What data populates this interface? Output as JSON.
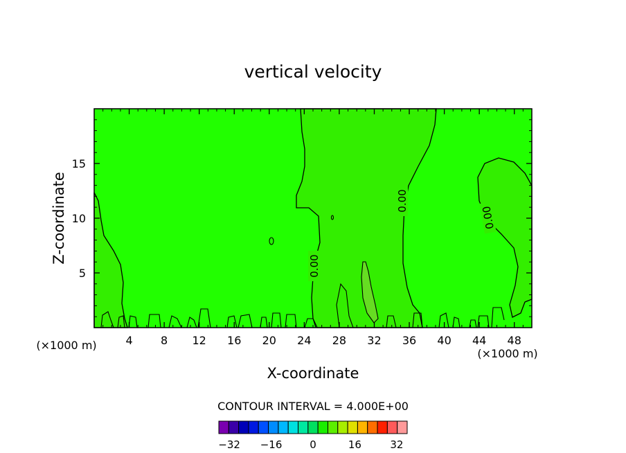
{
  "chart_data": {
    "type": "contour",
    "title": "vertical velocity",
    "xlabel": "X-coordinate",
    "ylabel": "Z-coordinate",
    "x_unit_left": "(×1000 m)",
    "x_unit_right": "(×1000 m)",
    "xlim": [
      0,
      50
    ],
    "ylim": [
      0,
      20
    ],
    "x_ticks": [
      "4",
      "8",
      "12",
      "16",
      "20",
      "24",
      "28",
      "32",
      "36",
      "40",
      "44",
      "48"
    ],
    "x_tick_values": [
      4,
      8,
      12,
      16,
      20,
      24,
      28,
      32,
      36,
      40,
      44,
      48
    ],
    "y_ticks": [
      "5",
      "10",
      "15"
    ],
    "y_tick_values": [
      5,
      10,
      15
    ],
    "contour_labels": [
      "0.00",
      "0.00",
      "0.00"
    ],
    "contour_interval_text": "CONTOUR INTERVAL = 4.000E+00",
    "colorbar": {
      "tick_labels": [
        "−32",
        "−16",
        "0",
        "16",
        "32"
      ],
      "tick_values": [
        -32,
        -16,
        0,
        16,
        32
      ],
      "levels": [
        -36,
        -32,
        -28,
        -24,
        -20,
        -16,
        -12,
        -8,
        -4,
        0,
        4,
        8,
        12,
        16,
        20,
        24,
        28,
        32,
        36
      ],
      "colors": [
        "#7a00b0",
        "#3a00a8",
        "#0000b8",
        "#0018e0",
        "#0050ff",
        "#008cff",
        "#00b8ff",
        "#00e0e0",
        "#00e8a0",
        "#00e060",
        "#1aee00",
        "#5cee00",
        "#a8ee00",
        "#e0e000",
        "#ffb400",
        "#ff6e00",
        "#ff2000",
        "#ff5a5a",
        "#ff9a9a"
      ]
    },
    "fill_colors": {
      "background": "#22ff00",
      "zero_to_four": "#33ee00",
      "four_to_eight": "#66dd22"
    },
    "line_color": "#000000"
  }
}
